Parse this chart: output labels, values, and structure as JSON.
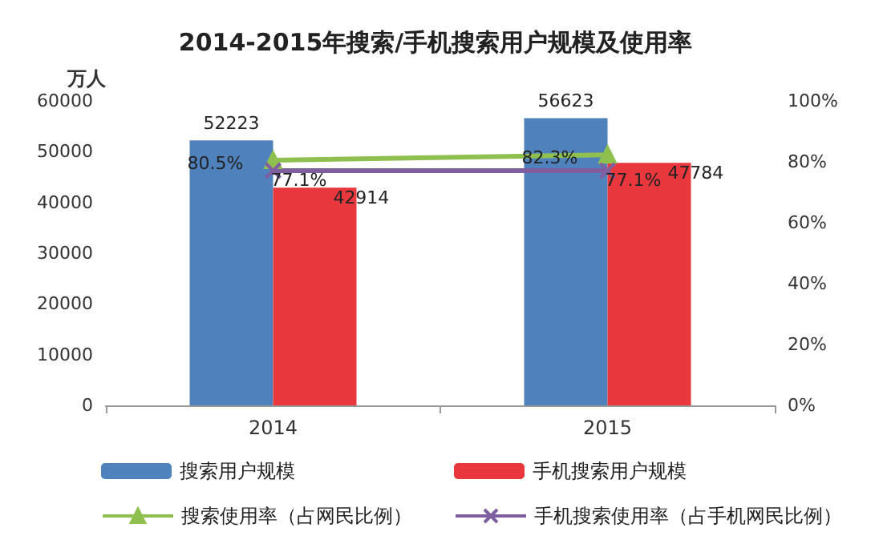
{
  "chart_data": {
    "type": "bar",
    "title": "2014-2015年搜索/手机搜索用户规模及使用率",
    "ylabel": "万人",
    "categories": [
      "2014",
      "2015"
    ],
    "series": [
      {
        "name": "搜索用户规模",
        "color": "#4f81bd",
        "values": [
          52223,
          56623
        ],
        "value_labels": [
          "52223",
          "56623"
        ]
      },
      {
        "name": "手机搜索用户规模",
        "color": "#e8383d",
        "values": [
          42914,
          47784
        ],
        "value_labels": [
          "42914",
          "47784"
        ]
      },
      {
        "name": "搜索使用率（占网民比例）",
        "type": "line",
        "axis": "y2",
        "marker": "triangle",
        "color": "#8fc04f",
        "values": [
          80.5,
          82.3
        ],
        "value_labels": [
          "80.5%",
          "82.3%"
        ]
      },
      {
        "name": "手机搜索使用率（占手机网民比例）",
        "type": "line",
        "axis": "y2",
        "marker": "cross",
        "color": "#7f5fa0",
        "values": [
          77.1,
          77.1
        ],
        "value_labels": [
          "77.1%",
          "77.1%"
        ]
      }
    ],
    "ylim": [
      0,
      60000
    ],
    "yticks": [
      0,
      10000,
      20000,
      30000,
      40000,
      50000,
      60000
    ],
    "y2lim": [
      0,
      100
    ],
    "y2ticks": [
      {
        "value": 0,
        "label": "0%"
      },
      {
        "value": 20,
        "label": "20%"
      },
      {
        "value": 40,
        "label": "40%"
      },
      {
        "value": 60,
        "label": "60%"
      },
      {
        "value": 80,
        "label": "80%"
      },
      {
        "value": 100,
        "label": "100%"
      }
    ],
    "legend": "bottom",
    "grid": false
  }
}
